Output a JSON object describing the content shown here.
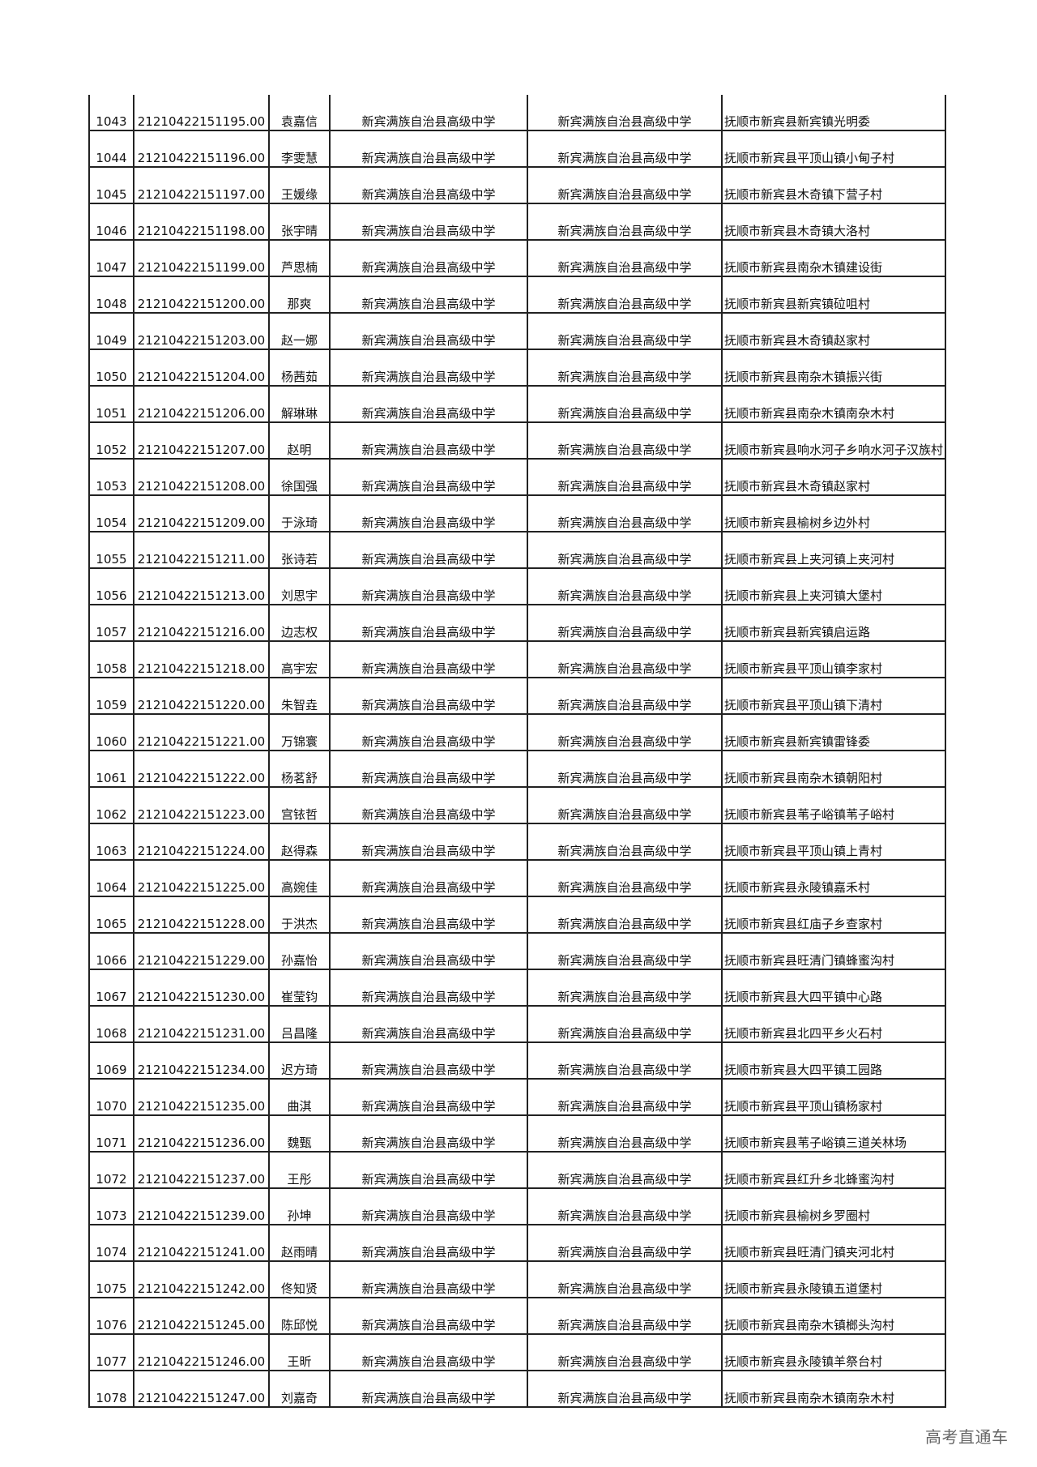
{
  "school": "新宾满族自治县高级中学",
  "rows": [
    {
      "no": "1043",
      "id": "21210422151195.00",
      "name": "袁嘉信",
      "school1": "新宾满族自治县高级中学",
      "school2": "新宾满族自治县高级中学",
      "address": "抚顺市新宾县新宾镇光明委"
    },
    {
      "no": "1044",
      "id": "21210422151196.00",
      "name": "李雯慧",
      "school1": "新宾满族自治县高级中学",
      "school2": "新宾满族自治县高级中学",
      "address": "抚顺市新宾县平顶山镇小甸子村"
    },
    {
      "no": "1045",
      "id": "21210422151197.00",
      "name": "王媛缘",
      "school1": "新宾满族自治县高级中学",
      "school2": "新宾满族自治县高级中学",
      "address": "抚顺市新宾县木奇镇下营子村"
    },
    {
      "no": "1046",
      "id": "21210422151198.00",
      "name": "张宇晴",
      "school1": "新宾满族自治县高级中学",
      "school2": "新宾满族自治县高级中学",
      "address": "抚顺市新宾县木奇镇大洛村"
    },
    {
      "no": "1047",
      "id": "21210422151199.00",
      "name": "芦思楠",
      "school1": "新宾满族自治县高级中学",
      "school2": "新宾满族自治县高级中学",
      "address": "抚顺市新宾县南杂木镇建设街"
    },
    {
      "no": "1048",
      "id": "21210422151200.00",
      "name": "那爽",
      "school1": "新宾满族自治县高级中学",
      "school2": "新宾满族自治县高级中学",
      "address": "抚顺市新宾县新宾镇砬咀村"
    },
    {
      "no": "1049",
      "id": "21210422151203.00",
      "name": "赵一娜",
      "school1": "新宾满族自治县高级中学",
      "school2": "新宾满族自治县高级中学",
      "address": "抚顺市新宾县木奇镇赵家村"
    },
    {
      "no": "1050",
      "id": "21210422151204.00",
      "name": "杨茜茹",
      "school1": "新宾满族自治县高级中学",
      "school2": "新宾满族自治县高级中学",
      "address": "抚顺市新宾县南杂木镇振兴街"
    },
    {
      "no": "1051",
      "id": "21210422151206.00",
      "name": "解琳琳",
      "school1": "新宾满族自治县高级中学",
      "school2": "新宾满族自治县高级中学",
      "address": "抚顺市新宾县南杂木镇南杂木村"
    },
    {
      "no": "1052",
      "id": "21210422151207.00",
      "name": "赵明",
      "school1": "新宾满族自治县高级中学",
      "school2": "新宾满族自治县高级中学",
      "address": "抚顺市新宾县响水河子乡响水河子汉族村"
    },
    {
      "no": "1053",
      "id": "21210422151208.00",
      "name": "徐国强",
      "school1": "新宾满族自治县高级中学",
      "school2": "新宾满族自治县高级中学",
      "address": "抚顺市新宾县木奇镇赵家村"
    },
    {
      "no": "1054",
      "id": "21210422151209.00",
      "name": "于泳琦",
      "school1": "新宾满族自治县高级中学",
      "school2": "新宾满族自治县高级中学",
      "address": "抚顺市新宾县榆树乡边外村"
    },
    {
      "no": "1055",
      "id": "21210422151211.00",
      "name": "张诗若",
      "school1": "新宾满族自治县高级中学",
      "school2": "新宾满族自治县高级中学",
      "address": "抚顺市新宾县上夹河镇上夹河村"
    },
    {
      "no": "1056",
      "id": "21210422151213.00",
      "name": "刘思宇",
      "school1": "新宾满族自治县高级中学",
      "school2": "新宾满族自治县高级中学",
      "address": "抚顺市新宾县上夹河镇大堡村"
    },
    {
      "no": "1057",
      "id": "21210422151216.00",
      "name": "边志权",
      "school1": "新宾满族自治县高级中学",
      "school2": "新宾满族自治县高级中学",
      "address": "抚顺市新宾县新宾镇启运路"
    },
    {
      "no": "1058",
      "id": "21210422151218.00",
      "name": "高宇宏",
      "school1": "新宾满族自治县高级中学",
      "school2": "新宾满族自治县高级中学",
      "address": "抚顺市新宾县平顶山镇李家村"
    },
    {
      "no": "1059",
      "id": "21210422151220.00",
      "name": "朱智垚",
      "school1": "新宾满族自治县高级中学",
      "school2": "新宾满族自治县高级中学",
      "address": "抚顺市新宾县平顶山镇下清村"
    },
    {
      "no": "1060",
      "id": "21210422151221.00",
      "name": "万锦寰",
      "school1": "新宾满族自治县高级中学",
      "school2": "新宾满族自治县高级中学",
      "address": "抚顺市新宾县新宾镇雷锋委"
    },
    {
      "no": "1061",
      "id": "21210422151222.00",
      "name": "杨茗舒",
      "school1": "新宾满族自治县高级中学",
      "school2": "新宾满族自治县高级中学",
      "address": "抚顺市新宾县南杂木镇朝阳村"
    },
    {
      "no": "1062",
      "id": "21210422151223.00",
      "name": "宫铱哲",
      "school1": "新宾满族自治县高级中学",
      "school2": "新宾满族自治县高级中学",
      "address": "抚顺市新宾县苇子峪镇苇子峪村"
    },
    {
      "no": "1063",
      "id": "21210422151224.00",
      "name": "赵得森",
      "school1": "新宾满族自治县高级中学",
      "school2": "新宾满族自治县高级中学",
      "address": "抚顺市新宾县平顶山镇上青村"
    },
    {
      "no": "1064",
      "id": "21210422151225.00",
      "name": "高婉佳",
      "school1": "新宾满族自治县高级中学",
      "school2": "新宾满族自治县高级中学",
      "address": "抚顺市新宾县永陵镇嘉禾村"
    },
    {
      "no": "1065",
      "id": "21210422151228.00",
      "name": "于洪杰",
      "school1": "新宾满族自治县高级中学",
      "school2": "新宾满族自治县高级中学",
      "address": "抚顺市新宾县红庙子乡查家村"
    },
    {
      "no": "1066",
      "id": "21210422151229.00",
      "name": "孙嘉怡",
      "school1": "新宾满族自治县高级中学",
      "school2": "新宾满族自治县高级中学",
      "address": "抚顺市新宾县旺清门镇蜂蜜沟村"
    },
    {
      "no": "1067",
      "id": "21210422151230.00",
      "name": "崔莹钧",
      "school1": "新宾满族自治县高级中学",
      "school2": "新宾满族自治县高级中学",
      "address": "抚顺市新宾县大四平镇中心路"
    },
    {
      "no": "1068",
      "id": "21210422151231.00",
      "name": "吕昌隆",
      "school1": "新宾满族自治县高级中学",
      "school2": "新宾满族自治县高级中学",
      "address": "抚顺市新宾县北四平乡火石村"
    },
    {
      "no": "1069",
      "id": "21210422151234.00",
      "name": "迟方琦",
      "school1": "新宾满族自治县高级中学",
      "school2": "新宾满族自治县高级中学",
      "address": "抚顺市新宾县大四平镇工园路"
    },
    {
      "no": "1070",
      "id": "21210422151235.00",
      "name": "曲淇",
      "school1": "新宾满族自治县高级中学",
      "school2": "新宾满族自治县高级中学",
      "address": "抚顺市新宾县平顶山镇杨家村"
    },
    {
      "no": "1071",
      "id": "21210422151236.00",
      "name": "魏甄",
      "school1": "新宾满族自治县高级中学",
      "school2": "新宾满族自治县高级中学",
      "address": "抚顺市新宾县苇子峪镇三道关林场"
    },
    {
      "no": "1072",
      "id": "21210422151237.00",
      "name": "王彤",
      "school1": "新宾满族自治县高级中学",
      "school2": "新宾满族自治县高级中学",
      "address": "抚顺市新宾县红升乡北蜂蜜沟村"
    },
    {
      "no": "1073",
      "id": "21210422151239.00",
      "name": "孙坤",
      "school1": "新宾满族自治县高级中学",
      "school2": "新宾满族自治县高级中学",
      "address": "抚顺市新宾县榆树乡罗圈村"
    },
    {
      "no": "1074",
      "id": "21210422151241.00",
      "name": "赵雨晴",
      "school1": "新宾满族自治县高级中学",
      "school2": "新宾满族自治县高级中学",
      "address": "抚顺市新宾县旺清门镇夹河北村"
    },
    {
      "no": "1075",
      "id": "21210422151242.00",
      "name": "佟知贤",
      "school1": "新宾满族自治县高级中学",
      "school2": "新宾满族自治县高级中学",
      "address": "抚顺市新宾县永陵镇五道堡村"
    },
    {
      "no": "1076",
      "id": "21210422151245.00",
      "name": "陈邱悦",
      "school1": "新宾满族自治县高级中学",
      "school2": "新宾满族自治县高级中学",
      "address": "抚顺市新宾县南杂木镇榔头沟村"
    },
    {
      "no": "1077",
      "id": "21210422151246.00",
      "name": "王昕",
      "school1": "新宾满族自治县高级中学",
      "school2": "新宾满族自治县高级中学",
      "address": "抚顺市新宾县永陵镇羊祭台村"
    },
    {
      "no": "1078",
      "id": "21210422151247.00",
      "name": "刘嘉奇",
      "school1": "新宾满族自治县高级中学",
      "school2": "新宾满族自治县高级中学",
      "address": "抚顺市新宾县南杂木镇南杂木村"
    }
  ],
  "watermark": "高考直通车"
}
